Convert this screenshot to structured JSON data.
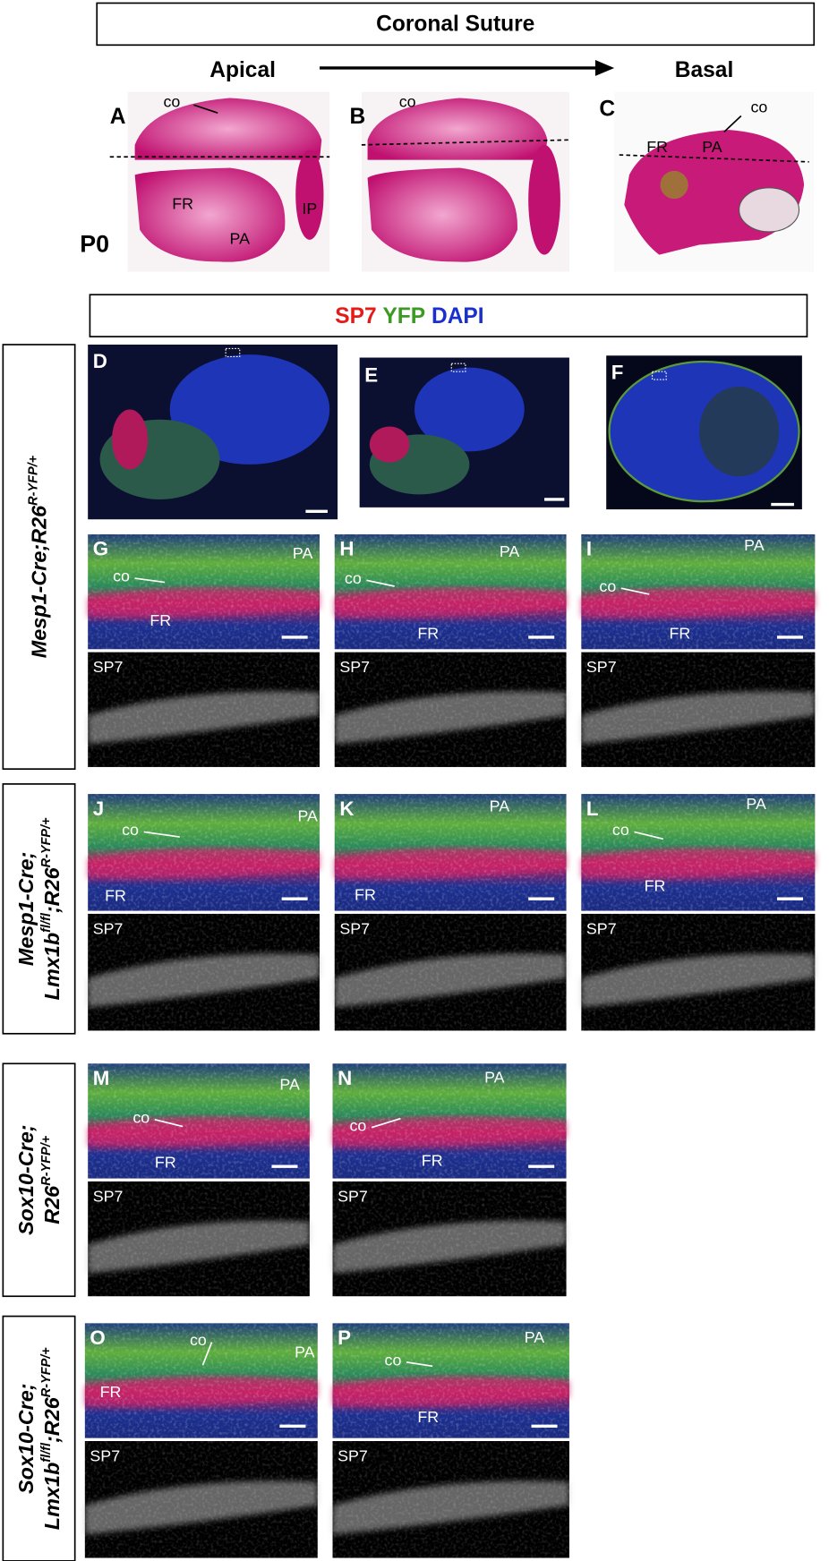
{
  "header": {
    "title": "Coronal Suture",
    "apical": "Apical",
    "basal": "Basal"
  },
  "stage": "P0",
  "whole_mounts": [
    {
      "letter": "A",
      "labels": [
        "co",
        "FR",
        "PA",
        "IP"
      ]
    },
    {
      "letter": "B",
      "labels": [
        "co"
      ]
    },
    {
      "letter": "C",
      "labels": [
        "co",
        "FR",
        "PA"
      ]
    }
  ],
  "stain_legend": [
    "SP7",
    "YFP",
    "DAPI"
  ],
  "overviews": [
    "D",
    "E",
    "F"
  ],
  "rows": [
    {
      "genotype": [
        [
          "Mesp1-Cre;R26",
          "R-YFP/+"
        ]
      ],
      "panels": [
        {
          "letter": "G",
          "labels": [
            "PA",
            "co",
            "FR"
          ],
          "gray_label": "SP7"
        },
        {
          "letter": "H",
          "labels": [
            "PA",
            "co",
            "FR"
          ],
          "gray_label": "SP7"
        },
        {
          "letter": "I",
          "labels": [
            "PA",
            "co",
            "FR"
          ],
          "gray_label": "SP7"
        }
      ]
    },
    {
      "genotype": [
        [
          "Mesp1-Cre;"
        ],
        [
          "Lmx1b",
          "fl/fl",
          ";R26",
          "R-YFP/+"
        ]
      ],
      "panels": [
        {
          "letter": "J",
          "labels": [
            "PA",
            "co",
            "FR"
          ],
          "gray_label": "SP7"
        },
        {
          "letter": "K",
          "labels": [
            "PA",
            "FR"
          ],
          "gray_label": "SP7"
        },
        {
          "letter": "L",
          "labels": [
            "PA",
            "co",
            "FR"
          ],
          "gray_label": "SP7"
        }
      ]
    },
    {
      "genotype": [
        [
          "Sox10-Cre;"
        ],
        [
          "R26",
          "R-YFP/+"
        ]
      ],
      "panels": [
        {
          "letter": "M",
          "labels": [
            "PA",
            "co",
            "FR"
          ],
          "gray_label": "SP7"
        },
        {
          "letter": "N",
          "labels": [
            "PA",
            "co",
            "FR"
          ],
          "gray_label": "SP7"
        }
      ]
    },
    {
      "genotype": [
        [
          "Sox10-Cre;"
        ],
        [
          "Lmx1b",
          "fl/fl",
          ";R26",
          "R-YFP/+"
        ]
      ],
      "panels": [
        {
          "letter": "O",
          "labels": [
            "PA",
            "co",
            "FR"
          ],
          "gray_label": "SP7"
        },
        {
          "letter": "P",
          "labels": [
            "PA",
            "co",
            "FR"
          ],
          "gray_label": "SP7"
        }
      ]
    }
  ]
}
